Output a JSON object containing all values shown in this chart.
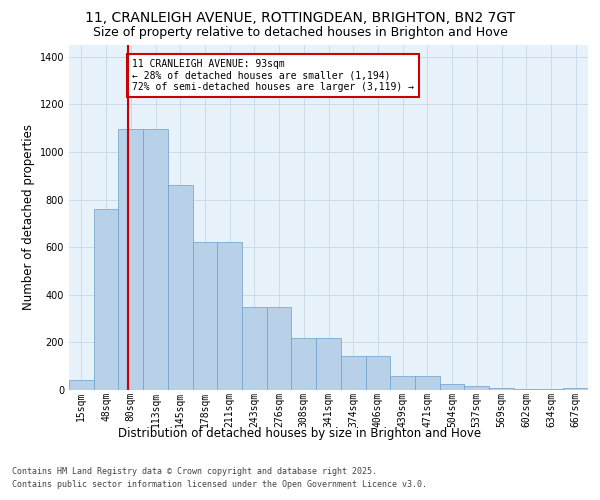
{
  "title_line1": "11, CRANLEIGH AVENUE, ROTTINGDEAN, BRIGHTON, BN2 7GT",
  "title_line2": "Size of property relative to detached houses in Brighton and Hove",
  "xlabel": "Distribution of detached houses by size in Brighton and Hove",
  "ylabel": "Number of detached properties",
  "categories": [
    "15sqm",
    "48sqm",
    "80sqm",
    "113sqm",
    "145sqm",
    "178sqm",
    "211sqm",
    "243sqm",
    "276sqm",
    "308sqm",
    "341sqm",
    "374sqm",
    "406sqm",
    "439sqm",
    "471sqm",
    "504sqm",
    "537sqm",
    "569sqm",
    "602sqm",
    "634sqm",
    "667sqm"
  ],
  "bar_values": [
    40,
    760,
    1095,
    1095,
    860,
    620,
    620,
    350,
    350,
    220,
    220,
    145,
    145,
    60,
    60,
    25,
    15,
    10,
    5,
    5,
    10
  ],
  "bar_color": "#b8d0e8",
  "bar_edge_color": "#6aa0cc",
  "red_line_color": "#cc0000",
  "annotation_line1": "11 CRANLEIGH AVENUE: 93sqm",
  "annotation_line2": "← 28% of detached houses are smaller (1,194)",
  "annotation_line3": "72% of semi-detached houses are larger (3,119) →",
  "annotation_box_edge_color": "#cc0000",
  "plot_bg_color": "#e8f2fa",
  "grid_color": "#c5d8e8",
  "footer_line1": "Contains HM Land Registry data © Crown copyright and database right 2025.",
  "footer_line2": "Contains public sector information licensed under the Open Government Licence v3.0.",
  "ylim_max": 1450,
  "title_fontsize": 10,
  "subtitle_fontsize": 9,
  "axis_label_fontsize": 8.5,
  "tick_fontsize": 7,
  "annotation_fontsize": 7,
  "footer_fontsize": 6
}
